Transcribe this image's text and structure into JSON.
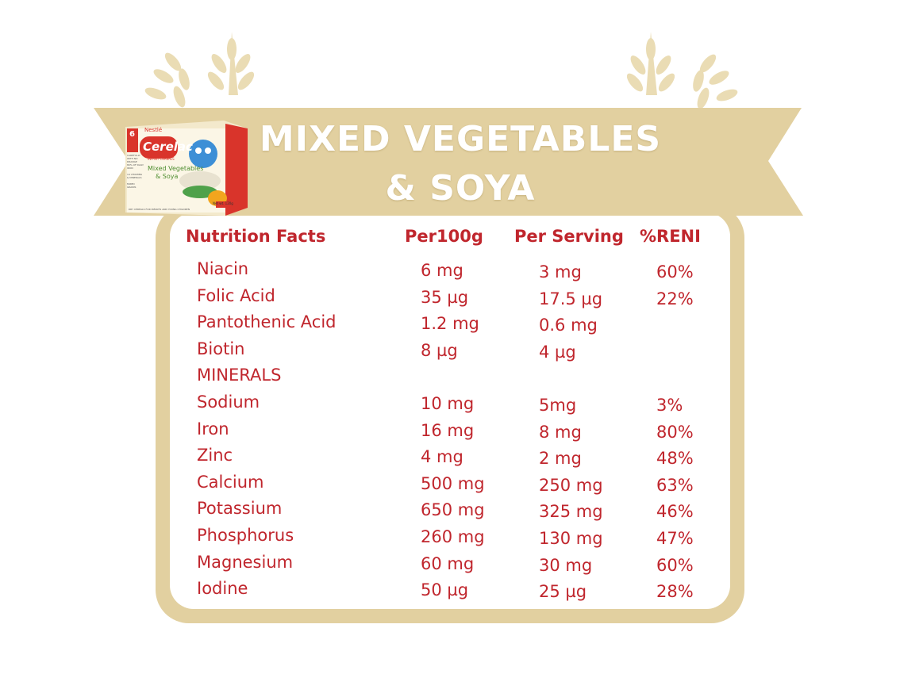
{
  "title": {
    "line1": "MIXED VEGETABLES",
    "line2": "& SOYA"
  },
  "product": {
    "brand": "Nestlé",
    "name": "Cerelac",
    "subtitle": "INFANT CEREALS",
    "flavor_line1": "Mixed Vegetables",
    "flavor_line2": "& Soya",
    "age_badge": "6",
    "claims": [
      "CAREFULLY WITH NO DRANGE",
      "80% OF DAILY IRON",
      "14 VITAMINS & MINERALS",
      "MIXED GRAINS"
    ],
    "tagline": "DRY CEREALS FOR INFANTS AND YOUNG CHILDREN",
    "net_weight": "Net wt. 120g"
  },
  "table": {
    "headers": [
      "Nutrition Facts",
      "Per100g",
      "Per Serving",
      "%RENI"
    ],
    "rows": [
      {
        "nutrient": "Niacin",
        "per100g": "6 mg",
        "per_serving": "3 mg",
        "reni": "60%"
      },
      {
        "nutrient": "Folic Acid",
        "per100g": "35 µg",
        "per_serving": "17.5 µg",
        "reni": "22%"
      },
      {
        "nutrient": "Pantothenic Acid",
        "per100g": "1.2 mg",
        "per_serving": "0.6 mg",
        "reni": ""
      },
      {
        "nutrient": "Biotin",
        "per100g": "8 µg",
        "per_serving": "4 µg",
        "reni": ""
      },
      {
        "nutrient": "MINERALS",
        "per100g": "",
        "per_serving": "",
        "reni": ""
      },
      {
        "nutrient": "Sodium",
        "per100g": "10 mg",
        "per_serving": "5mg",
        "reni": "3%"
      },
      {
        "nutrient": "Iron",
        "per100g": "16 mg",
        "per_serving": "8 mg",
        "reni": "80%"
      },
      {
        "nutrient": "Zinc",
        "per100g": "4 mg",
        "per_serving": "2 mg",
        "reni": "48%"
      },
      {
        "nutrient": "Calcium",
        "per100g": "500 mg",
        "per_serving": "250 mg",
        "reni": "63%"
      },
      {
        "nutrient": "Potassium",
        "per100g": "650 mg",
        "per_serving": "325 mg",
        "reni": "46%"
      },
      {
        "nutrient": "Phosphorus",
        "per100g": "260 mg",
        "per_serving": "130 mg",
        "reni": "47%"
      },
      {
        "nutrient": "Magnesium",
        "per100g": "60 mg",
        "per_serving": "30 mg",
        "reni": "60%"
      },
      {
        "nutrient": "Iodine",
        "per100g": "50 µg",
        "per_serving": "25 µg",
        "reni": "28%"
      }
    ]
  },
  "colors": {
    "ribbon": "#e2d0a0",
    "text": "#c0262d",
    "title": "#ffffff",
    "wheat": "#eadcb4"
  }
}
